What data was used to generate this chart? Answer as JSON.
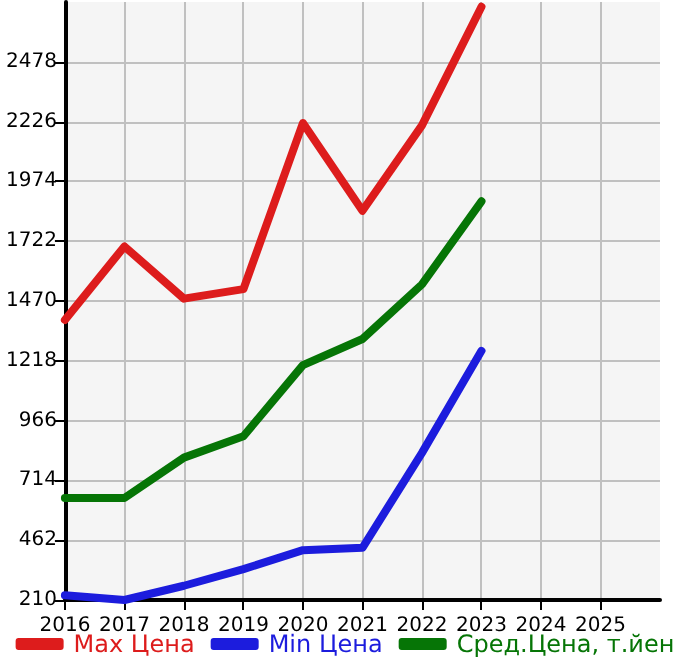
{
  "chart_data": {
    "type": "line",
    "x": [
      2016,
      2017,
      2018,
      2019,
      2020,
      2021,
      2022,
      2023
    ],
    "series": [
      {
        "name": "Max Цена",
        "color": "#dd1c1c",
        "values": [
          1390,
          1700,
          1480,
          1520,
          2220,
          1850,
          2210,
          2710
        ]
      },
      {
        "name": "Min Цена",
        "color": "#1c1cdd",
        "values": [
          230,
          210,
          270,
          340,
          420,
          430,
          830,
          1260
        ]
      },
      {
        "name": "Сред.Цена, т.йен",
        "color": "#067506",
        "values": [
          640,
          640,
          810,
          900,
          1200,
          1310,
          1540,
          1890
        ]
      }
    ],
    "xlim": [
      2016,
      2026
    ],
    "xticks": [
      2016,
      2017,
      2018,
      2019,
      2020,
      2021,
      2022,
      2023,
      2024,
      2025
    ],
    "ylim": [
      210,
      2730
    ],
    "yticks": [
      210,
      462,
      714,
      966,
      1218,
      1470,
      1722,
      1974,
      2226,
      2478
    ],
    "grid": true,
    "legend": "bottom",
    "marker": "none",
    "line_style": "solid"
  }
}
